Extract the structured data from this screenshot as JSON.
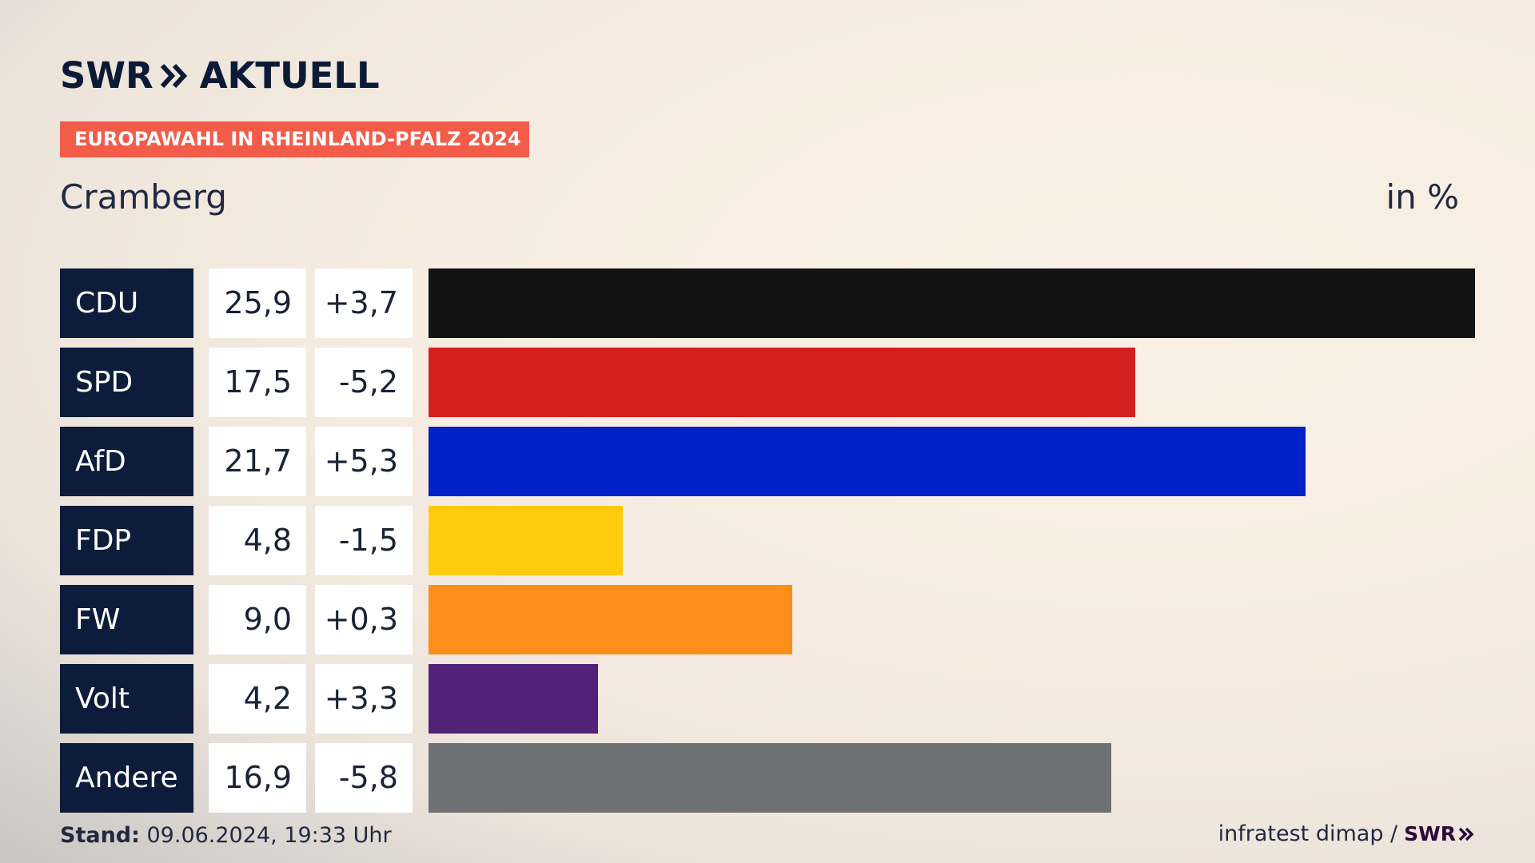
{
  "logo": {
    "left": "SWR",
    "right": "AKTUELL"
  },
  "tag": "EUROPAWAHL IN RHEINLAND-PFALZ 2024",
  "region": "Cramberg",
  "unit": "in %",
  "footer": {
    "stand_label": "Stand:",
    "stand_value": " 09.06.2024, 19:33 Uhr",
    "source": "infratest dimap /",
    "brand": "SWR"
  },
  "colors": {
    "CDU": "#121212",
    "SPD": "#d62020",
    "AfD": "#0021c8",
    "FDP": "#ffcc0d",
    "FW": "#fe8e1a",
    "Volt": "#502379",
    "Andere": "#6f7073"
  },
  "chart_data": {
    "type": "bar",
    "categories": [
      "CDU",
      "SPD",
      "AfD",
      "FDP",
      "FW",
      "Volt",
      "Andere"
    ],
    "values": [
      25.9,
      17.5,
      21.7,
      4.8,
      9.0,
      4.2,
      16.9
    ],
    "labels": [
      "25,9",
      "17,5",
      "21,7",
      "4,8",
      "9,0",
      "4,2",
      "16,9"
    ],
    "diffs": [
      "+3,7",
      "-5,2",
      "+5,3",
      "-1,5",
      "+0,3",
      "+3,3",
      "-5,8"
    ],
    "title": "Cramberg",
    "xlabel": "",
    "ylabel": "in %"
  }
}
